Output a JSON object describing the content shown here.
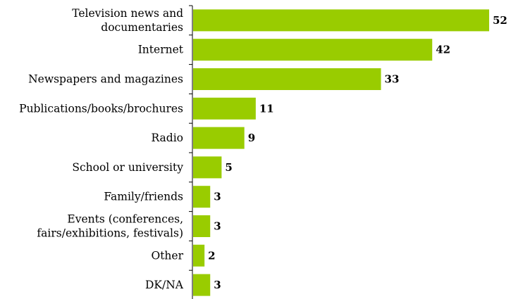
{
  "chart_data": {
    "type": "bar",
    "orientation": "horizontal",
    "categories": [
      [
        "Television news and",
        "documentaries"
      ],
      [
        "Internet"
      ],
      [
        "Newspapers and magazines"
      ],
      [
        "Publications/books/brochures"
      ],
      [
        "Radio"
      ],
      [
        "School or university"
      ],
      [
        "Family/friends"
      ],
      [
        "Events (conferences,",
        "fairs/exhibitions, festivals)"
      ],
      [
        "Other"
      ],
      [
        "DK/NA"
      ]
    ],
    "values": [
      52,
      42,
      33,
      11,
      9,
      5,
      3,
      3,
      2,
      3
    ],
    "value_labels": [
      "52",
      "42",
      "33",
      "11",
      "9",
      "5",
      "3",
      "3",
      "2",
      "3"
    ],
    "xlim": [
      0,
      52
    ],
    "bar_color": "#99cc00",
    "grid": false,
    "legend": "none"
  }
}
